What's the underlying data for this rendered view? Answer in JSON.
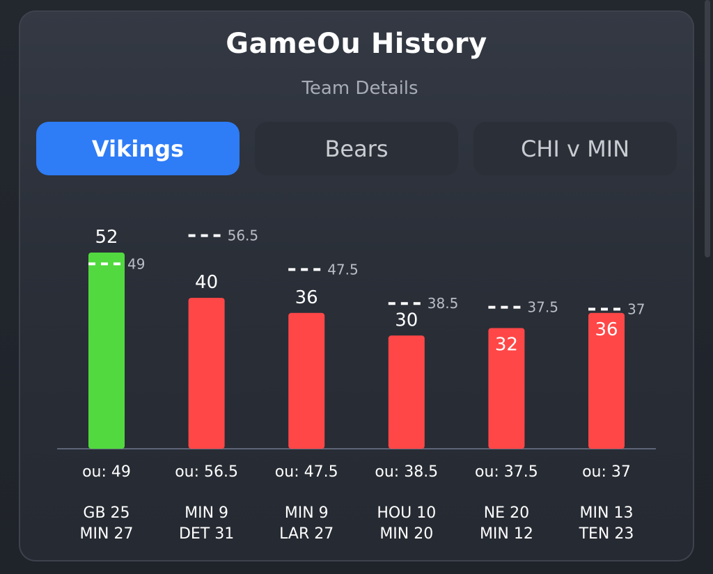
{
  "header": {
    "title": "GameOu History",
    "subtitle": "Team Details"
  },
  "tabs": [
    {
      "label": "Vikings",
      "active": true
    },
    {
      "label": "Bears",
      "active": false
    },
    {
      "label": "CHI v MIN",
      "active": false
    }
  ],
  "colors": {
    "over": "#52d93f",
    "under": "#ff4747",
    "active_tab": "#2e7cf6"
  },
  "chart_data": {
    "type": "bar",
    "title": "",
    "xlabel": "",
    "ylabel": "",
    "categories": [
      "GB 25 MIN 27",
      "MIN 9 DET 31",
      "MIN 9 LAR 27",
      "HOU 10 MIN 20",
      "NE 20 MIN 12",
      "MIN 13 TEN 23"
    ],
    "score_lines": [
      [
        "GB 25",
        "MIN 27"
      ],
      [
        "MIN 9",
        "DET 31"
      ],
      [
        "MIN 9",
        "LAR 27"
      ],
      [
        "HOU 10",
        "MIN 20"
      ],
      [
        "NE 20",
        "MIN 12"
      ],
      [
        "MIN 13",
        "TEN 23"
      ]
    ],
    "values": [
      52,
      40,
      36,
      30,
      32,
      36
    ],
    "ou_lines": [
      49,
      56.5,
      47.5,
      38.5,
      37.5,
      37
    ],
    "ou_labels": [
      "ou: 49",
      "ou: 56.5",
      "ou: 47.5",
      "ou: 38.5",
      "ou: 37.5",
      "ou: 37"
    ],
    "results": [
      "over",
      "under",
      "under",
      "under",
      "under",
      "under"
    ],
    "ylim": [
      0,
      60
    ],
    "grid": false,
    "legend": "none"
  }
}
